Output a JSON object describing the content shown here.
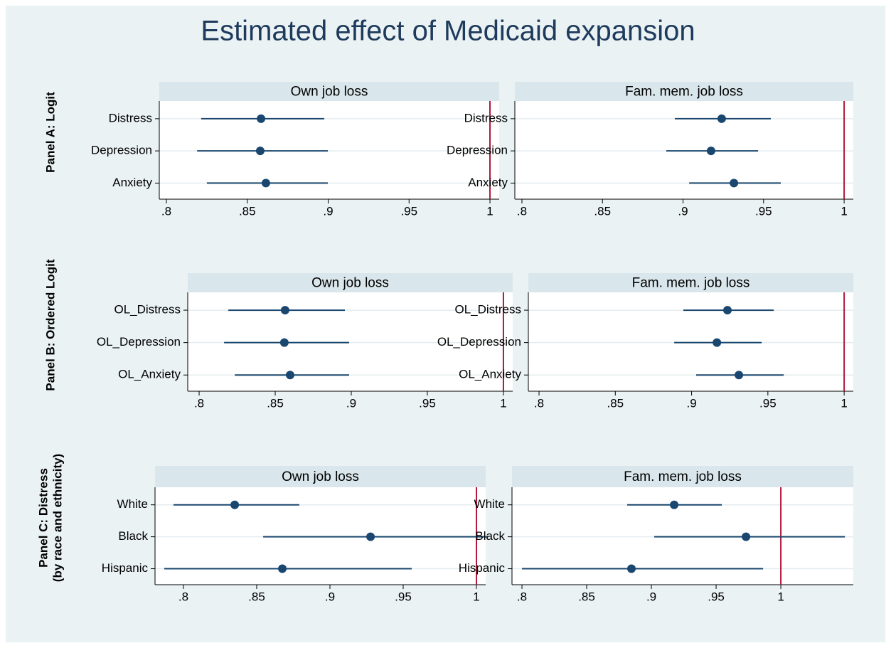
{
  "title": "Estimated effect of Medicaid expansion",
  "row_labels": [
    [
      "Panel A: Logit"
    ],
    [
      "Panel B: Ordered Logit"
    ],
    [
      "Panel C: Distress",
      "(by race and ethnicity)"
    ]
  ],
  "chart_data": [
    {
      "type": "coefplot",
      "title": "Own job loss",
      "categories": [
        "Distress",
        "Depression",
        "Anxiety"
      ],
      "values": [
        0.8585,
        0.858,
        0.8615
      ],
      "lower": [
        0.8215,
        0.819,
        0.825
      ],
      "upper": [
        0.8976,
        0.8998,
        0.8998
      ],
      "xlim": [
        0.7956,
        1.0057
      ],
      "xticks": [
        {
          "value": 0.8,
          "label": ".8"
        },
        {
          "value": 0.85,
          "label": ".85"
        },
        {
          "value": 0.9,
          "label": ".9"
        },
        {
          "value": 0.95,
          "label": ".95"
        },
        1
      ],
      "refline": 1,
      "color": "#1a476f",
      "refline_color": "#b0173a",
      "grid": true
    },
    {
      "type": "coefplot",
      "title": "Fam. mem. job loss",
      "categories": [
        "Distress",
        "Depression",
        "Anxiety"
      ],
      "values": [
        0.924,
        0.9174,
        0.9316
      ],
      "lower": [
        0.8949,
        0.8896,
        0.9038
      ],
      "upper": [
        0.9545,
        0.9466,
        0.9607
      ],
      "xlim": [
        0.7956,
        1.0057
      ],
      "xticks": [
        {
          "value": 0.8,
          "label": ".8"
        },
        {
          "value": 0.85,
          "label": ".85"
        },
        {
          "value": 0.9,
          "label": ".9"
        },
        {
          "value": 0.95,
          "label": ".95"
        },
        1
      ],
      "refline": 1,
      "color": "#1a476f",
      "refline_color": "#b0173a",
      "grid": true
    },
    {
      "type": "coefplot",
      "title": "Own job loss",
      "categories": [
        "OL_Distress",
        "OL_Depression",
        "OL_Anxiety"
      ],
      "values": [
        0.8565,
        0.856,
        0.8598
      ],
      "lower": [
        0.8192,
        0.8164,
        0.8234
      ],
      "upper": [
        0.8958,
        0.8986,
        0.8986
      ],
      "xlim": [
        0.7925,
        1.0061
      ],
      "xticks": [
        {
          "value": 0.8,
          "label": ".8"
        },
        {
          "value": 0.85,
          "label": ".85"
        },
        {
          "value": 0.9,
          "label": ".9"
        },
        {
          "value": 0.95,
          "label": ".95"
        },
        1
      ],
      "refline": 1,
      "color": "#1a476f",
      "refline_color": "#b0173a",
      "grid": true
    },
    {
      "type": "coefplot",
      "title": "Fam. mem. job loss",
      "categories": [
        "OL_Distress",
        "OL_Depression",
        "OL_Anxiety"
      ],
      "values": [
        0.9235,
        0.9166,
        0.931
      ],
      "lower": [
        0.8946,
        0.8886,
        0.903
      ],
      "upper": [
        0.9538,
        0.9459,
        0.9604
      ],
      "xlim": [
        0.793,
        1.006
      ],
      "xticks": [
        {
          "value": 0.8,
          "label": ".8"
        },
        {
          "value": 0.85,
          "label": ".85"
        },
        {
          "value": 0.9,
          "label": ".9"
        },
        {
          "value": 0.95,
          "label": ".95"
        },
        1
      ],
      "refline": 1,
      "color": "#1a476f",
      "refline_color": "#b0173a",
      "grid": true
    },
    {
      "type": "coefplot",
      "title": "Own job loss",
      "categories": [
        "White",
        "Black",
        "Hispanic"
      ],
      "values": [
        0.835,
        0.9277,
        0.8675
      ],
      "lower": [
        0.7932,
        0.8544,
        0.7869
      ],
      "upper": [
        0.8791,
        1.0078,
        0.9558
      ],
      "xlim": [
        0.7806,
        1.0063
      ],
      "xticks": [
        {
          "value": 0.8,
          "label": ".8"
        },
        {
          "value": 0.85,
          "label": ".85"
        },
        {
          "value": 0.9,
          "label": ".9"
        },
        {
          "value": 0.95,
          "label": ".95"
        },
        1
      ],
      "refline": 1,
      "color": "#1a476f",
      "refline_color": "#b0173a",
      "grid": true
    },
    {
      "type": "coefplot",
      "title": "Fam. mem. job loss",
      "categories": [
        "White",
        "Black",
        "Hispanic"
      ],
      "values": [
        0.9176,
        0.9731,
        0.8846
      ],
      "lower": [
        0.8813,
        0.9022,
        0.8
      ],
      "upper": [
        0.9544,
        1.0495,
        0.9863
      ],
      "xlim": [
        0.7923,
        1.056
      ],
      "xticks": [
        {
          "value": 0.8,
          "label": ".8"
        },
        {
          "value": 0.85,
          "label": ".85"
        },
        {
          "value": 0.9,
          "label": ".9"
        },
        {
          "value": 0.95,
          "label": ".95"
        },
        1
      ],
      "refline": 1,
      "color": "#1a476f",
      "refline_color": "#b0173a",
      "grid": true
    }
  ]
}
